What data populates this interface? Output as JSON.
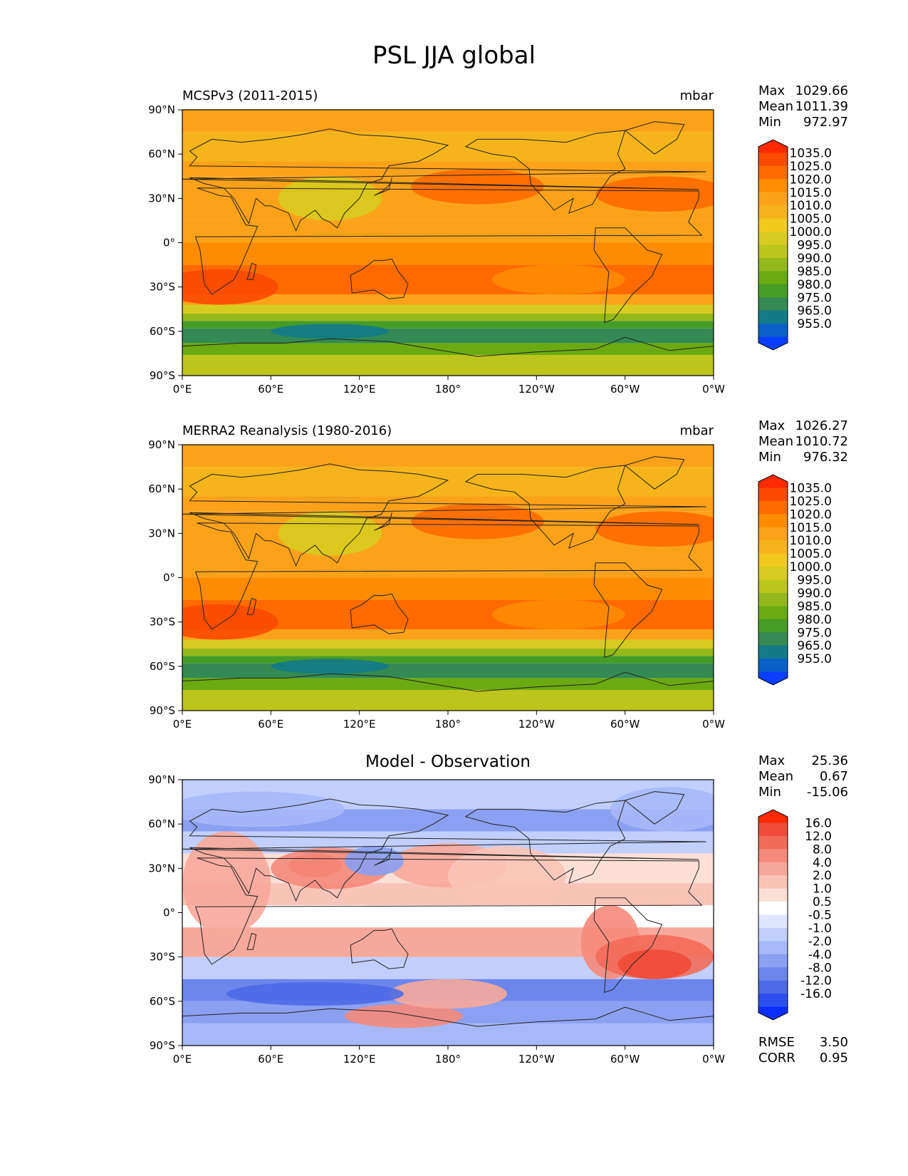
{
  "title": "PSL JJA global",
  "axes": {
    "x_ticks": [
      "0°E",
      "60°E",
      "120°E",
      "180°",
      "120°W",
      "60°W",
      "0°W"
    ],
    "y_ticks": [
      "90°N",
      "60°N",
      "30°N",
      "0°",
      "30°S",
      "60°S",
      "90°S"
    ]
  },
  "panels": [
    {
      "left_title": "MCSPv3 (2011-2015)",
      "right_title": "mbar",
      "center_title": "",
      "stats": [
        {
          "label": "Max",
          "value": "1029.66"
        },
        {
          "label": "Mean",
          "value": "1011.39"
        },
        {
          "label": "Min",
          "value": "972.97"
        }
      ],
      "colorbar": {
        "labels": [
          "1035.0",
          "1025.0",
          "1020.0",
          "1015.0",
          "1010.0",
          "1005.0",
          "1000.0",
          "995.0",
          "990.0",
          "985.0",
          "980.0",
          "975.0",
          "965.0",
          "955.0"
        ],
        "colors": [
          "#ff2a00",
          "#fa4a00",
          "#ff6a00",
          "#ff8c00",
          "#fca21a",
          "#f5b41c",
          "#f2c91f",
          "#d8cb1f",
          "#bcc51c",
          "#94b81a",
          "#6aaa12",
          "#479c26",
          "#348a52",
          "#137a8a",
          "#0b5fc8",
          "#0a3eff"
        ]
      }
    },
    {
      "left_title": "MERRA2 Reanalysis (1980-2016)",
      "right_title": "mbar",
      "center_title": "",
      "stats": [
        {
          "label": "Max",
          "value": "1026.27"
        },
        {
          "label": "Mean",
          "value": "1010.72"
        },
        {
          "label": "Min",
          "value": "976.32"
        }
      ],
      "colorbar": {
        "labels": [
          "1035.0",
          "1025.0",
          "1020.0",
          "1015.0",
          "1010.0",
          "1005.0",
          "1000.0",
          "995.0",
          "990.0",
          "985.0",
          "980.0",
          "975.0",
          "965.0",
          "955.0"
        ],
        "colors": [
          "#ff2a00",
          "#fa4a00",
          "#ff6a00",
          "#ff8c00",
          "#fca21a",
          "#f5b41c",
          "#f2c91f",
          "#d8cb1f",
          "#bcc51c",
          "#94b81a",
          "#6aaa12",
          "#479c26",
          "#348a52",
          "#137a8a",
          "#0b5fc8",
          "#0a3eff"
        ]
      }
    },
    {
      "left_title": "",
      "right_title": "",
      "center_title": "Model - Observation",
      "stats": [
        {
          "label": "Max",
          "value": "25.36"
        },
        {
          "label": "Mean",
          "value": "0.67"
        },
        {
          "label": "Min",
          "value": "-15.06"
        }
      ],
      "extra_stats": [
        {
          "label": "RMSE",
          "value": "3.50"
        },
        {
          "label": "CORR",
          "value": "0.95"
        }
      ],
      "colorbar": {
        "labels": [
          "16.0",
          "12.0",
          "8.0",
          "4.0",
          "2.0",
          "1.0",
          "0.5",
          "-0.5",
          "-1.0",
          "-2.0",
          "-4.0",
          "-8.0",
          "-12.0",
          "-16.0"
        ],
        "colors": [
          "#ff2a00",
          "#f04a3a",
          "#f36a5a",
          "#f58a7a",
          "#f7a89a",
          "#f9c4b8",
          "#fce0d8",
          "#ffffff",
          "#dfe6ff",
          "#c2cffc",
          "#a6b8f7",
          "#8aa0f2",
          "#6c86ec",
          "#4d6ae6",
          "#2e4ff0",
          "#0a2eff"
        ]
      }
    }
  ]
}
